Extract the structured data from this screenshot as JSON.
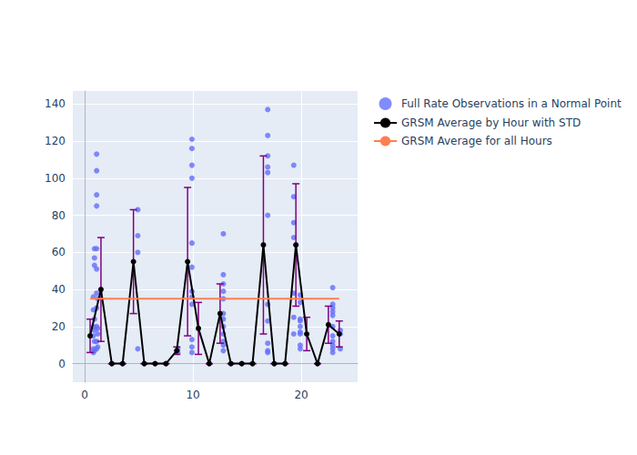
{
  "chart_data": {
    "type": "scatter",
    "xlim": [
      -1.1,
      25.2
    ],
    "xticks": [
      0,
      10,
      20
    ],
    "ylim": [
      -10,
      147
    ],
    "yticks": [
      0,
      20,
      40,
      60,
      80,
      100,
      120,
      140
    ],
    "grid": true,
    "legend": "right",
    "series": [
      {
        "name": "Full Rate Observations in a Normal Point",
        "type": "scatter",
        "color": "#636efa",
        "marker": "circle",
        "x": [
          0.8,
          0.8,
          0.8,
          0.8,
          0.8,
          0.8,
          0.9,
          0.9,
          0.9,
          0.9,
          0.9,
          0.9,
          0.9,
          1.1,
          1.1,
          1.1,
          1.1,
          1.1,
          1.1,
          1.1,
          1.1,
          1.1,
          1.1,
          1.1,
          1.2,
          1.2,
          1.2,
          1.2,
          4.9,
          4.9,
          4.9,
          4.9,
          8.6,
          8.6,
          9.9,
          9.9,
          9.9,
          9.9,
          9.9,
          9.9,
          9.9,
          9.9,
          9.9,
          9.9,
          9.9,
          9.9,
          12.8,
          12.8,
          12.8,
          12.8,
          12.8,
          12.8,
          12.8,
          12.8,
          12.8,
          12.8,
          12.8,
          12.8,
          16.9,
          16.9,
          16.9,
          16.9,
          16.9,
          16.9,
          16.9,
          16.9,
          16.9,
          16.9,
          16.9,
          19.3,
          19.3,
          19.3,
          19.3,
          19.3,
          19.3,
          19.3,
          19.9,
          19.9,
          19.9,
          19.9,
          19.9,
          19.9,
          19.9,
          19.9,
          19.9,
          22.9,
          22.9,
          22.9,
          22.9,
          22.9,
          22.9,
          22.9,
          22.9,
          22.9,
          22.9,
          22.9,
          23.6,
          23.6,
          23.6
        ],
        "values": [
          36,
          6,
          8,
          15,
          20,
          29,
          57,
          53,
          62,
          18,
          12,
          7,
          24,
          113,
          104,
          91,
          85,
          62,
          51,
          38,
          30,
          20,
          12,
          8,
          19,
          16,
          9,
          35,
          83,
          69,
          60,
          8,
          8,
          6,
          121,
          116,
          107,
          100,
          65,
          52,
          39,
          36,
          32,
          13,
          9,
          6,
          70,
          48,
          43,
          39,
          35,
          27,
          24,
          20,
          16,
          12,
          10,
          7,
          137,
          123,
          112,
          106,
          103,
          80,
          32,
          23,
          11,
          7,
          6,
          107,
          90,
          76,
          68,
          38,
          25,
          16,
          37,
          33,
          24,
          23,
          20,
          17,
          16,
          10,
          8,
          41,
          32,
          30,
          28,
          26,
          20,
          15,
          12,
          10,
          8,
          6,
          18,
          16,
          8
        ]
      },
      {
        "name": "GRSM Average by Hour with STD",
        "type": "line",
        "color": "#000000",
        "marker": "circle",
        "line_style": "solid",
        "x": [
          0.5,
          1.5,
          2.5,
          3.5,
          4.5,
          5.5,
          6.5,
          7.5,
          8.5,
          9.5,
          10.5,
          11.5,
          12.5,
          13.5,
          14.5,
          15.5,
          16.5,
          17.5,
          18.5,
          19.5,
          20.5,
          21.5,
          22.5,
          23.5
        ],
        "values": [
          15,
          40,
          0,
          0,
          55,
          0,
          0,
          0,
          7,
          55,
          19,
          0,
          27,
          0,
          0,
          0,
          64,
          0,
          0,
          64,
          16,
          0,
          21,
          16
        ],
        "std": [
          9,
          28,
          0,
          0,
          28,
          0,
          0,
          0,
          2,
          40,
          14,
          0,
          16,
          0,
          0,
          0,
          48,
          0,
          0,
          33,
          9,
          0,
          10,
          7
        ]
      },
      {
        "name": "GRSM Average for all Hours",
        "type": "line",
        "color": "#ff7f50",
        "line_style": "solid",
        "x": [
          0.5,
          23.5
        ],
        "values": [
          35,
          35
        ]
      }
    ]
  }
}
